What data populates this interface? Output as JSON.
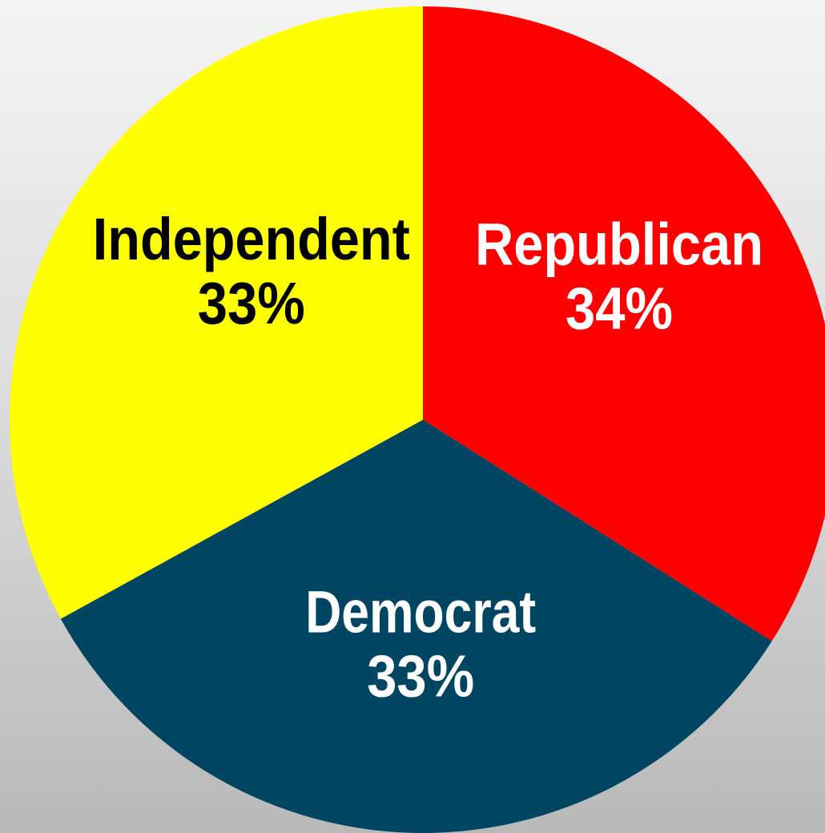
{
  "chart_data": {
    "type": "pie",
    "title": "",
    "slices": [
      {
        "label": "Republican",
        "value": 34,
        "value_label": "34%",
        "color": "#fe0000",
        "text_color": "#ffffff"
      },
      {
        "label": "Democrat",
        "value": 33,
        "value_label": "33%",
        "color": "#004662",
        "text_color": "#ffffff"
      },
      {
        "label": "Independent",
        "value": 33,
        "value_label": "33%",
        "color": "#ffff00",
        "text_color": "#000000"
      }
    ],
    "start_angle_deg": 0,
    "direction": "clockwise",
    "legend": "none",
    "labels_inside": true
  }
}
